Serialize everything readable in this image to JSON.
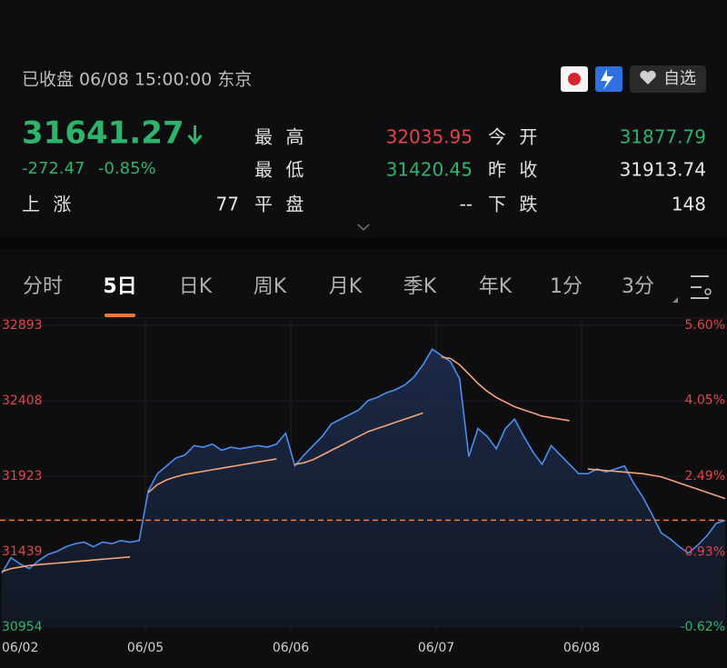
{
  "quote": {
    "status": "已收盘 06/08 15:00:00 东京",
    "price": 31641.27,
    "change": "-272.47",
    "change_pct": "-0.85%",
    "watch": "自选",
    "stats": [
      {
        "label": "最 高",
        "value": "32035.95",
        "color": "#e0454b"
      },
      {
        "label": "今 开",
        "value": "31877.79",
        "color": "#2fb36b"
      },
      {
        "label": "最 低",
        "value": "31420.45",
        "color": "#2fb36b"
      },
      {
        "label": "昨 收",
        "value": "31913.74",
        "color": "#e8e8e8"
      },
      {
        "label": "上 涨",
        "value": "77",
        "color": "#e8e8e8"
      },
      {
        "label": "平 盘",
        "value": "--",
        "color": "#e8e8e8"
      },
      {
        "label": "下 跌",
        "value": "148",
        "color": "#e8e8e8"
      }
    ]
  },
  "tabs": {
    "items": [
      "分时",
      "5日",
      "日K",
      "周K",
      "月K",
      "季K",
      "年K",
      "1分",
      "3分"
    ],
    "active": 1
  },
  "chart_data": {
    "type": "line",
    "day_labels": [
      "06/02",
      "06/05",
      "06/06",
      "06/07",
      "06/08"
    ],
    "ylim": [
      30954,
      32893
    ],
    "yticks": [
      32893,
      32408,
      31923,
      31439,
      30954
    ],
    "y2lim": [
      -0.62,
      5.6
    ],
    "y2ticks": [
      {
        "value": 5.6,
        "label": "5.60%"
      },
      {
        "value": 4.05,
        "label": "4.05%"
      },
      {
        "value": 2.49,
        "label": "2.49%"
      },
      {
        "value": 0.93,
        "label": "0.93%"
      },
      {
        "value": -0.62,
        "label": "-0.62%"
      }
    ],
    "grid": true,
    "series": [
      {
        "color": "#4a8ff0",
        "values": [
          31300,
          31400,
          31360,
          31330,
          31380,
          31420,
          31440,
          31470,
          31490,
          31500,
          31470,
          31500,
          31490,
          31510,
          31500,
          31510,
          31830,
          31940,
          31990,
          32040,
          32060,
          32120,
          32110,
          32130,
          32090,
          32110,
          32100,
          32110,
          32120,
          32110,
          32130,
          32200,
          31990,
          32060,
          32120,
          32180,
          32260,
          32290,
          32320,
          32350,
          32410,
          32430,
          32460,
          32480,
          32510,
          32560,
          32640,
          32740,
          32700,
          32660,
          32550,
          32050,
          32230,
          32180,
          32100,
          32230,
          32290,
          32180,
          32080,
          32000,
          32120,
          32060,
          32000,
          31940,
          31940,
          31970,
          31950,
          31970,
          31990,
          31880,
          31790,
          31680,
          31560,
          31520,
          31470,
          31430,
          31480,
          31540,
          31620,
          31640
        ]
      },
      {
        "color": "#f4a47a",
        "values": [
          31310,
          31330,
          31340,
          31350,
          31355,
          31360,
          31365,
          31370,
          31375,
          31380,
          31385,
          31390,
          31395,
          31400,
          31405,
          null,
          31820,
          31870,
          31900,
          31920,
          31935,
          31945,
          31955,
          31965,
          31975,
          31985,
          31995,
          32005,
          32015,
          32025,
          32035,
          null,
          32000,
          32010,
          32030,
          32060,
          32090,
          32120,
          32150,
          32180,
          32210,
          32230,
          32250,
          32270,
          32290,
          32310,
          32330,
          null,
          32690,
          32680,
          32640,
          32580,
          32520,
          32470,
          32430,
          32400,
          32370,
          32350,
          32330,
          32310,
          32300,
          32290,
          32280,
          null,
          31970,
          31965,
          31960,
          31955,
          31950,
          31945,
          31940,
          31930,
          31920,
          31900,
          31880,
          31860,
          31840,
          31820,
          31800,
          31780
        ]
      }
    ],
    "price_line_color": "#f07a3a"
  }
}
